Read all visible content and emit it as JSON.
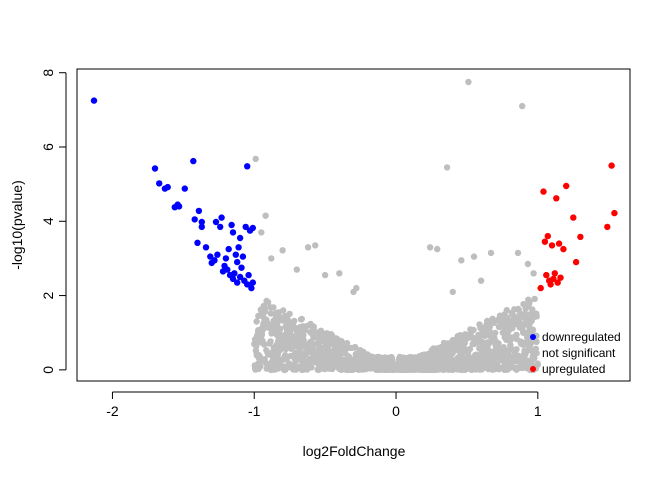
{
  "chart_data": {
    "type": "scatter",
    "title": "",
    "xlabel": "log2FoldChange",
    "ylabel": "-log10(pvalue)",
    "xlim": [
      -2.25,
      1.65
    ],
    "ylim": [
      -0.3,
      8.1
    ],
    "xticks": [
      -2,
      -1,
      0,
      1
    ],
    "yticks": [
      0,
      2,
      4,
      6,
      8
    ],
    "grid": false,
    "legend_position": "bottom-right",
    "legend": [
      {
        "label": "downregulated",
        "color": "#0000ff"
      },
      {
        "label": "not significant",
        "color": "#bebebe"
      },
      {
        "label": "upregulated",
        "color": "#ff0000"
      }
    ],
    "series": [
      {
        "name": "downregulated",
        "color": "#0000ff",
        "points": [
          [
            -2.13,
            7.25
          ],
          [
            -1.7,
            5.42
          ],
          [
            -1.67,
            5.02
          ],
          [
            -1.63,
            4.88
          ],
          [
            -1.61,
            4.92
          ],
          [
            -1.56,
            4.38
          ],
          [
            -1.54,
            4.45
          ],
          [
            -1.53,
            4.4
          ],
          [
            -1.49,
            4.88
          ],
          [
            -1.43,
            5.62
          ],
          [
            -1.42,
            4.05
          ],
          [
            -1.39,
            4.28
          ],
          [
            -1.4,
            3.42
          ],
          [
            -1.37,
            3.85
          ],
          [
            -1.37,
            3.98
          ],
          [
            -1.34,
            3.3
          ],
          [
            -1.31,
            3.05
          ],
          [
            -1.28,
            2.95
          ],
          [
            -1.27,
            3.98
          ],
          [
            -1.24,
            3.85
          ],
          [
            -1.23,
            4.1
          ],
          [
            -1.21,
            2.8
          ],
          [
            -1.2,
            3.0
          ],
          [
            -1.19,
            2.7
          ],
          [
            -1.18,
            3.25
          ],
          [
            -1.17,
            2.55
          ],
          [
            -1.16,
            3.9
          ],
          [
            -1.15,
            3.7
          ],
          [
            -1.14,
            2.6
          ],
          [
            -1.13,
            3.1
          ],
          [
            -1.12,
            2.9
          ],
          [
            -1.11,
            3.3
          ],
          [
            -1.1,
            2.5
          ],
          [
            -1.1,
            3.55
          ],
          [
            -1.09,
            2.75
          ],
          [
            -1.08,
            3.05
          ],
          [
            -1.07,
            2.4
          ],
          [
            -1.06,
            3.85
          ],
          [
            -1.05,
            5.48
          ],
          [
            -1.05,
            2.3
          ],
          [
            -1.04,
            2.55
          ],
          [
            -1.03,
            3.75
          ],
          [
            -1.02,
            2.2
          ],
          [
            -1.01,
            3.82
          ],
          [
            -1.01,
            2.35
          ],
          [
            -1.22,
            2.65
          ],
          [
            -1.26,
            3.1
          ],
          [
            -1.3,
            2.88
          ],
          [
            -1.15,
            2.45
          ],
          [
            -1.12,
            2.35
          ]
        ]
      },
      {
        "name": "upregulated",
        "color": "#ff0000",
        "points": [
          [
            1.02,
            2.2
          ],
          [
            1.04,
            4.8
          ],
          [
            1.05,
            3.45
          ],
          [
            1.06,
            2.55
          ],
          [
            1.07,
            3.6
          ],
          [
            1.08,
            2.4
          ],
          [
            1.09,
            2.3
          ],
          [
            1.1,
            3.35
          ],
          [
            1.11,
            2.45
          ],
          [
            1.13,
            4.62
          ],
          [
            1.14,
            2.35
          ],
          [
            1.15,
            3.4
          ],
          [
            1.18,
            3.25
          ],
          [
            1.2,
            4.95
          ],
          [
            1.25,
            4.1
          ],
          [
            1.27,
            2.9
          ],
          [
            1.3,
            3.58
          ],
          [
            1.49,
            3.85
          ],
          [
            1.52,
            5.5
          ],
          [
            1.54,
            4.22
          ],
          [
            1.12,
            2.6
          ],
          [
            1.16,
            2.48
          ]
        ]
      },
      {
        "name": "not significant",
        "color": "#bebebe",
        "points": [
          [
            0.51,
            7.75
          ],
          [
            0.89,
            7.1
          ],
          [
            0.36,
            5.45
          ],
          [
            -0.99,
            5.68
          ],
          [
            -0.92,
            4.15
          ],
          [
            -0.95,
            3.7
          ],
          [
            -0.88,
            3.0
          ],
          [
            -0.8,
            3.22
          ],
          [
            -0.62,
            3.3
          ],
          [
            -0.57,
            3.35
          ],
          [
            -0.4,
            2.6
          ],
          [
            -0.28,
            2.2
          ],
          [
            0.24,
            3.3
          ],
          [
            0.29,
            3.25
          ],
          [
            0.46,
            2.95
          ],
          [
            0.55,
            3.05
          ],
          [
            0.67,
            3.15
          ],
          [
            0.86,
            3.15
          ],
          [
            0.93,
            2.85
          ],
          [
            0.97,
            2.6
          ],
          [
            0.4,
            2.1
          ],
          [
            0.6,
            2.4
          ],
          [
            -0.7,
            2.7
          ],
          [
            -0.5,
            2.55
          ],
          [
            -0.3,
            2.1
          ]
        ]
      }
    ]
  }
}
